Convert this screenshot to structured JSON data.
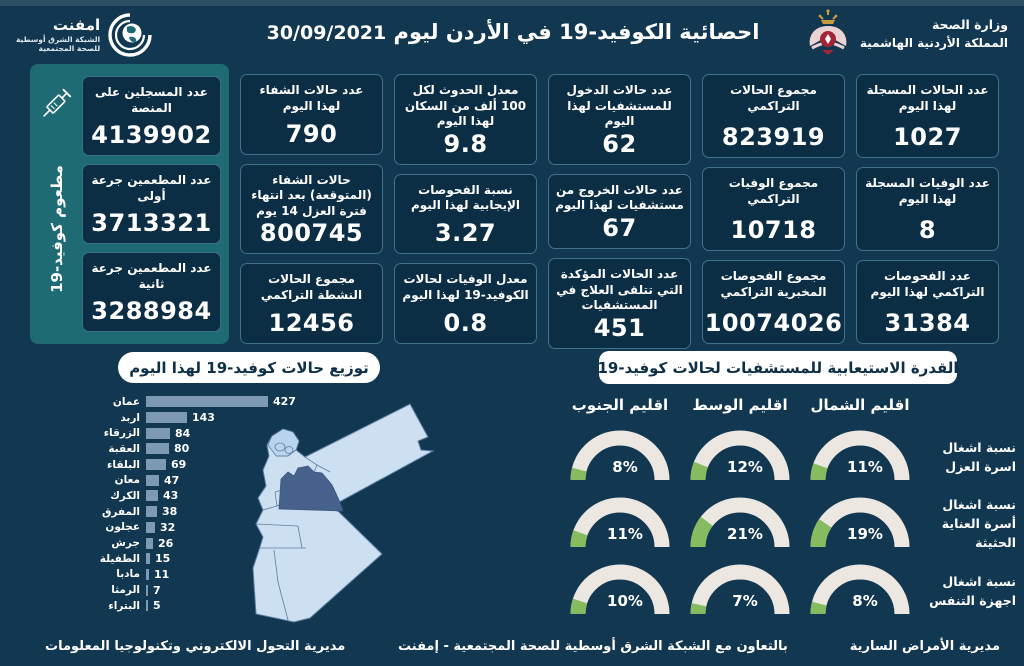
{
  "header": {
    "title": "احصائية الكوفيد-19 في الأردن ليوم",
    "date": "30/09/2021",
    "ministry": {
      "line1": "وزارة الصحة",
      "line2": "المملكة الأردنية الهاشمية"
    },
    "emphnet": {
      "name": "امفنت",
      "line1": "الشبكة الشرق أوسطية",
      "line2": "للصحة المجتمعية"
    }
  },
  "vaccination_panel": {
    "side_label": "مطعوم كوفيد-19",
    "cards": [
      {
        "label": "عدد المسجلين على المنصة",
        "value": "4139902"
      },
      {
        "label": "عدد المطعمين جرعة أولى",
        "value": "3713321"
      },
      {
        "label": "عدد المطعمين جرعة ثانية",
        "value": "3288984"
      }
    ]
  },
  "stats": {
    "columns": [
      {
        "cards": [
          {
            "label": "عدد الحالات المسجلة لهذا اليوم",
            "value": "1027"
          },
          {
            "label": "عدد الوفيات المسجلة لهذا اليوم",
            "value": "8"
          },
          {
            "label": "عدد الفحوصات التراكمي لهذا اليوم",
            "value": "31384"
          }
        ]
      },
      {
        "cards": [
          {
            "label": "مجموع الحالات التراكمي",
            "value": "823919"
          },
          {
            "label": "مجموع الوفيات التراكمي",
            "value": "10718"
          },
          {
            "label": "مجموع الفحوصات المخبرية التراكمي",
            "value": "10074026"
          }
        ]
      },
      {
        "cards": [
          {
            "label": "عدد حالات الدخول للمستشفيات لهذا اليوم",
            "value": "62"
          },
          {
            "label": "عدد حالات الخروج من مستشفيات لهذا اليوم",
            "value": "67"
          },
          {
            "label": "عدد الحالات المؤكدة التي تتلقى العلاج في المستشفيات",
            "value": "451"
          }
        ]
      },
      {
        "cards": [
          {
            "label": "معدل الحدوث لكل 100 ألف من السكان لهذا اليوم",
            "value": "9.8"
          },
          {
            "label": "نسبة الفحوصات الإيجابية لهذا اليوم",
            "value": "3.27"
          },
          {
            "label": "معدل الوفيات لحالات الكوفيد-19 لهذا اليوم",
            "value": "0.8"
          }
        ]
      },
      {
        "cards": [
          {
            "label": "عدد حالات الشفاء لهذا اليوم",
            "value": "790"
          },
          {
            "label": "حالات الشفاء (المتوقعة) بعد انتهاء فترة العزل 14 يوم",
            "value": "800745"
          },
          {
            "label": "مجموع الحالات النشطة التراكمي",
            "value": "12456"
          }
        ]
      }
    ]
  },
  "chart_data": [
    {
      "type": "bar",
      "title": "توزيع حالات كوفيد-19 لهذا اليوم",
      "orientation": "horizontal",
      "categories": [
        "عمان",
        "اربد",
        "الزرقاء",
        "العقبة",
        "البلقاء",
        "معان",
        "الكرك",
        "المفرق",
        "عجلون",
        "جرش",
        "الطفيلة",
        "مادبا",
        "الرمثا",
        "البتراء"
      ],
      "values": [
        427,
        143,
        84,
        80,
        69,
        47,
        43,
        38,
        32,
        26,
        15,
        11,
        7,
        5
      ],
      "xlim": [
        0,
        427
      ],
      "bar_color": "#7e99b4",
      "grid": false,
      "value_labels": true
    },
    {
      "type": "gauge-grid",
      "title": "القدرة الاستيعابية للمستشفيات لحالات كوفيد-19",
      "unit": "%",
      "columns": [
        "اقليم الشمال",
        "اقليم الوسط",
        "اقليم الجنوب"
      ],
      "rows": [
        {
          "label": "نسبة اشغال اسرة العزل",
          "values": [
            11,
            12,
            8
          ]
        },
        {
          "label": "نسبة اشغال أسرة العناية الحثيثة",
          "values": [
            19,
            21,
            11
          ]
        },
        {
          "label": "نسبة اشغال اجهزة التنفس",
          "values": [
            8,
            7,
            10
          ]
        }
      ],
      "range": [
        0,
        100
      ],
      "track_color": "#ece7e1",
      "fill_color": "#86bb5f"
    }
  ],
  "footer": {
    "right_text": "مديرية الأمراض السارية",
    "center_text": "بالتعاون مع الشبكة الشرق أوسطية للصحة المجتمعية - إمفنت",
    "left_text": "مديرية التحول الالكتروني وتكنولوجيا المعلومات"
  },
  "colors": {
    "background": "#123750",
    "card_background": "#0c2e45",
    "card_border": "#41718b",
    "teal_panel": "#1f6b74",
    "bar": "#7e99b4",
    "gauge_track": "#ece7e1",
    "gauge_fill": "#86bb5f",
    "map_light": "#cde0f2",
    "map_highlight": "#46618b",
    "banner_background": "#ffffff",
    "banner_text": "#0d3047"
  }
}
